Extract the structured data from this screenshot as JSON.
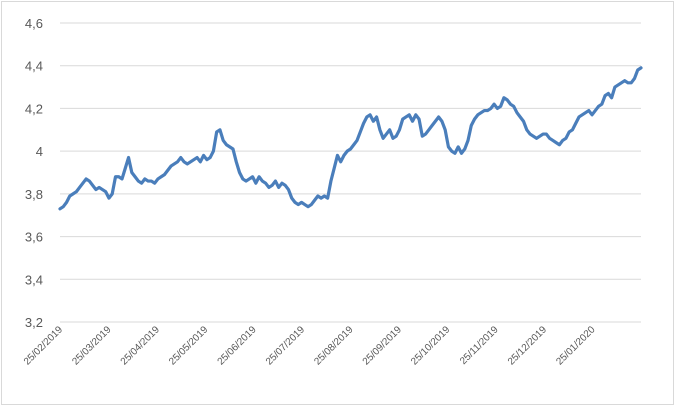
{
  "chart_data": {
    "type": "line",
    "title": "",
    "xlabel": "",
    "ylabel": "",
    "ylim": [
      3.2,
      4.6
    ],
    "y_ticks": [
      "3,2",
      "3,4",
      "3,6",
      "3,8",
      "4",
      "4,2",
      "4,4",
      "4,6"
    ],
    "x_ticks": [
      "25/02/2019",
      "25/03/2019",
      "25/04/2019",
      "25/05/2019",
      "25/06/2019",
      "25/07/2019",
      "25/08/2019",
      "25/09/2019",
      "25/10/2019",
      "25/11/2019",
      "25/12/2019",
      "25/01/2020"
    ],
    "grid": "horizontal",
    "legend": "none",
    "colors": {
      "line": "#4a7ebb",
      "grid": "#d9d9d9",
      "text": "#595959"
    },
    "series": [
      {
        "values": [
          3.73,
          3.74,
          3.76,
          3.79,
          3.8,
          3.81,
          3.83,
          3.85,
          3.87,
          3.86,
          3.84,
          3.82,
          3.83,
          3.82,
          3.81,
          3.78,
          3.8,
          3.88,
          3.88,
          3.87,
          3.92,
          3.97,
          3.9,
          3.88,
          3.86,
          3.85,
          3.87,
          3.86,
          3.86,
          3.85,
          3.87,
          3.88,
          3.89,
          3.91,
          3.93,
          3.94,
          3.95,
          3.97,
          3.95,
          3.94,
          3.95,
          3.96,
          3.97,
          3.95,
          3.98,
          3.96,
          3.97,
          4.0,
          4.09,
          4.1,
          4.05,
          4.03,
          4.02,
          4.01,
          3.95,
          3.9,
          3.87,
          3.86,
          3.87,
          3.88,
          3.85,
          3.88,
          3.86,
          3.85,
          3.83,
          3.84,
          3.86,
          3.83,
          3.85,
          3.84,
          3.82,
          3.78,
          3.76,
          3.75,
          3.76,
          3.75,
          3.74,
          3.75,
          3.77,
          3.79,
          3.78,
          3.79,
          3.78,
          3.86,
          3.92,
          3.98,
          3.95,
          3.98,
          4.0,
          4.01,
          4.03,
          4.05,
          4.09,
          4.13,
          4.16,
          4.17,
          4.14,
          4.16,
          4.1,
          4.06,
          4.08,
          4.1,
          4.06,
          4.07,
          4.1,
          4.15,
          4.16,
          4.17,
          4.14,
          4.17,
          4.15,
          4.07,
          4.08,
          4.1,
          4.12,
          4.14,
          4.16,
          4.14,
          4.1,
          4.02,
          4.0,
          3.99,
          4.02,
          3.99,
          4.01,
          4.05,
          4.12,
          4.15,
          4.17,
          4.18,
          4.19,
          4.19,
          4.2,
          4.22,
          4.2,
          4.21,
          4.25,
          4.24,
          4.22,
          4.21,
          4.18,
          4.16,
          4.14,
          4.1,
          4.08,
          4.07,
          4.06,
          4.07,
          4.08,
          4.08,
          4.06,
          4.05,
          4.04,
          4.03,
          4.05,
          4.06,
          4.09,
          4.1,
          4.13,
          4.16,
          4.17,
          4.18,
          4.19,
          4.17,
          4.19,
          4.21,
          4.22,
          4.26,
          4.27,
          4.25,
          4.3,
          4.31,
          4.32,
          4.33,
          4.32,
          4.32,
          4.34,
          4.38,
          4.39
        ]
      }
    ]
  }
}
